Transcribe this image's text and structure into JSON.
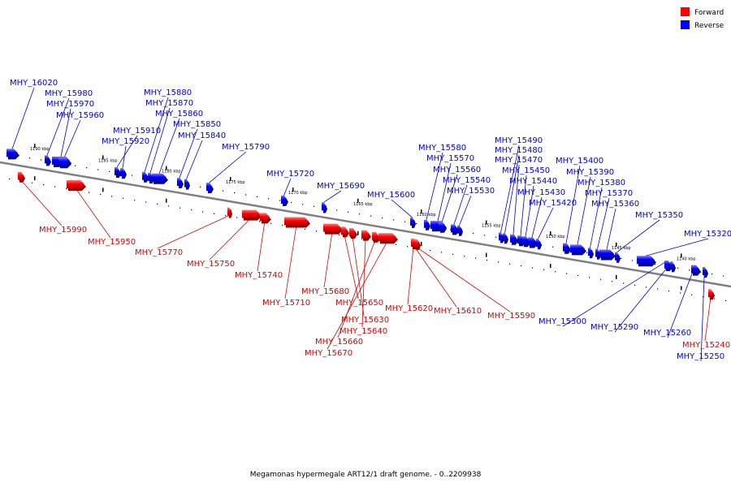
{
  "title": "Megamonas hypermegale ART12/1 draft genome. - 0..2209938",
  "legend": {
    "forward": {
      "label": "Forward",
      "color": "#ff0000"
    },
    "reverse": {
      "label": "Reverse",
      "color": "#0000ff"
    }
  },
  "colors": {
    "forward": "#ff0000",
    "reverse": "#0000ff",
    "axis": "#808080",
    "leader_forward": "#e00000",
    "leader_reverse": "#0000e0"
  },
  "ticks": [
    "1190 kbp",
    "1185 kbp",
    "1180 kbp",
    "1175 kbp",
    "1170 kbp",
    "1165 kbp",
    "1160 kbp",
    "1155 kbp",
    "1150 kbp",
    "1145 kbp",
    "1140 kbp"
  ],
  "reverse_genes": [
    "MHY_16020",
    "MHY_15980",
    "MHY_15970",
    "MHY_15960",
    "MHY_15910",
    "MHY_15920",
    "MHY_15880",
    "MHY_15870",
    "MHY_15860",
    "MHY_15850",
    "MHY_15840",
    "MHY_15790",
    "MHY_15720",
    "MHY_15690",
    "MHY_15600",
    "MHY_15580",
    "MHY_15570",
    "MHY_15560",
    "MHY_15540",
    "MHY_15530",
    "MHY_15490",
    "MHY_15480",
    "MHY_15470",
    "MHY_15450",
    "MHY_15440",
    "MHY_15430",
    "MHY_15420",
    "MHY_15400",
    "MHY_15390",
    "MHY_15380",
    "MHY_15370",
    "MHY_15360",
    "MHY_15350",
    "MHY_15320",
    "MHY_15300",
    "MHY_15290",
    "MHY_15260",
    "MHY_15250"
  ],
  "forward_genes": [
    "MHY_15990",
    "MHY_15950",
    "MHY_15770",
    "MHY_15750",
    "MHY_15740",
    "MHY_15710",
    "MHY_15680",
    "MHY_15650",
    "MHY_15630",
    "MHY_15640",
    "MHY_15660",
    "MHY_15670",
    "MHY_15620",
    "MHY_15610",
    "MHY_15590",
    "MHY_15240"
  ]
}
